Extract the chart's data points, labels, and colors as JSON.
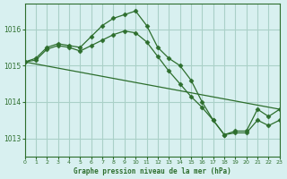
{
  "title": "Graphe pression niveau de la mer (hPa)",
  "background_color": "#d8f0f0",
  "grid_color": "#aad0c8",
  "line_color": "#2d6e2d",
  "marker_color": "#2d6e2d",
  "xlim": [
    0,
    23
  ],
  "ylim": [
    1012.5,
    1016.7
  ],
  "yticks": [
    1013,
    1014,
    1015,
    1016
  ],
  "xticks": [
    0,
    1,
    2,
    3,
    4,
    5,
    6,
    7,
    8,
    9,
    10,
    11,
    12,
    13,
    14,
    15,
    16,
    17,
    18,
    19,
    20,
    21,
    22,
    23
  ],
  "series1": {
    "x": [
      0,
      1,
      2,
      3,
      4,
      5,
      6,
      7,
      8,
      9,
      10,
      11,
      12,
      13,
      14,
      15,
      16,
      17,
      18,
      19,
      20,
      21,
      22,
      23
    ],
    "y": [
      1015.1,
      1015.2,
      1015.5,
      1015.6,
      1015.55,
      1015.5,
      1015.8,
      1016.1,
      1016.3,
      1016.4,
      1016.5,
      1016.1,
      1015.5,
      1015.2,
      1015.0,
      1014.6,
      1014.0,
      1013.5,
      1013.1,
      1013.2,
      1013.2,
      1013.8,
      1013.6,
      1013.8
    ]
  },
  "series2": {
    "x": [
      0,
      1,
      2,
      3,
      4,
      5,
      6,
      7,
      8,
      9,
      10,
      11,
      12,
      13,
      14,
      15,
      16,
      17,
      18,
      19,
      20,
      21,
      22,
      23
    ],
    "y": [
      1015.1,
      1015.15,
      1015.45,
      1015.55,
      1015.5,
      1015.4,
      1015.55,
      1015.7,
      1015.85,
      1015.95,
      1015.9,
      1015.65,
      1015.25,
      1014.85,
      1014.5,
      1014.15,
      1013.85,
      1013.5,
      1013.1,
      1013.15,
      1013.15,
      1013.5,
      1013.35,
      1013.5
    ]
  },
  "series3": {
    "x": [
      0,
      23
    ],
    "y": [
      1015.1,
      1013.8
    ]
  }
}
